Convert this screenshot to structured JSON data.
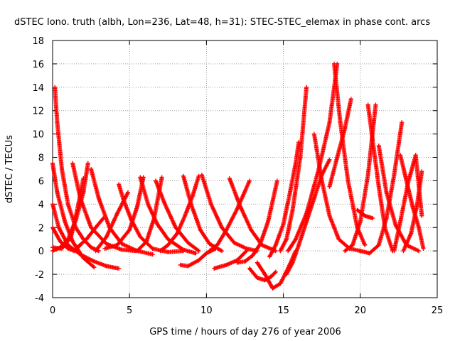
{
  "chart_data": {
    "type": "scatter",
    "title": "dSTEC Iono. truth (albh, Lon=236, Lat=48, h=31): STEC-STEC_elemax in phase cont. arcs",
    "xlabel": "GPS time / hours of day 276 of year 2006",
    "ylabel": "dSTEC  / TECUs",
    "xlim": [
      0,
      25
    ],
    "ylim": [
      -4,
      18
    ],
    "xticks": [
      0,
      5,
      10,
      15,
      20,
      25
    ],
    "yticks": [
      -4,
      -2,
      0,
      2,
      4,
      6,
      8,
      10,
      12,
      14,
      16,
      18
    ],
    "grid": true,
    "marker": "+",
    "color": "#ff0000",
    "series": [
      {
        "x": [
          0.15,
          0.3,
          0.6,
          1.0,
          1.5,
          2.0,
          2.5,
          3.0
        ],
        "y": [
          14.0,
          11.0,
          7.0,
          4.0,
          2.0,
          1.0,
          0.3,
          0.0
        ]
      },
      {
        "x": [
          0.0,
          0.3,
          0.8,
          1.3,
          2.0,
          2.7
        ],
        "y": [
          7.5,
          5.0,
          2.5,
          0.8,
          -0.6,
          -1.4
        ]
      },
      {
        "x": [
          0.0,
          0.4,
          1.0,
          1.8,
          2.7,
          3.5,
          4.3
        ],
        "y": [
          4.0,
          2.0,
          0.5,
          -0.3,
          -0.9,
          -1.3,
          -1.5
        ]
      },
      {
        "x": [
          0.0,
          0.5,
          1.0,
          1.4,
          1.8
        ],
        "y": [
          2.0,
          0.8,
          0.2,
          0.0,
          0.5
        ]
      },
      {
        "x": [
          0.0,
          0.6,
          1.2,
          1.6,
          2.0
        ],
        "y": [
          0.3,
          0.2,
          1.2,
          3.5,
          6.2
        ]
      },
      {
        "x": [
          0.0,
          0.5,
          1.0,
          1.5,
          2.0,
          2.3
        ],
        "y": [
          0.0,
          0.3,
          1.0,
          2.6,
          5.0,
          7.5
        ]
      },
      {
        "x": [
          1.3,
          1.8,
          2.5,
          3.5,
          4.5,
          5.4
        ],
        "y": [
          7.5,
          4.5,
          2.0,
          0.6,
          0.1,
          0.0
        ]
      },
      {
        "x": [
          1.6,
          2.2,
          2.8,
          3.3
        ],
        "y": [
          0.3,
          1.0,
          2.0,
          2.8
        ]
      },
      {
        "x": [
          2.5,
          3.0,
          3.7,
          4.5,
          5.5,
          6.5
        ],
        "y": [
          7.0,
          4.5,
          2.0,
          0.6,
          0.0,
          -0.3
        ]
      },
      {
        "x": [
          2.8,
          3.5,
          4.2,
          4.9
        ],
        "y": [
          0.0,
          1.2,
          3.2,
          5.0
        ]
      },
      {
        "x": [
          4.3,
          4.6,
          5.1,
          5.7,
          6.5,
          7.5,
          8.5
        ],
        "y": [
          5.7,
          4.4,
          2.7,
          1.2,
          0.2,
          -0.1,
          0.0
        ]
      },
      {
        "x": [
          3.4,
          4.2,
          5.0,
          5.5,
          5.9
        ],
        "y": [
          0.2,
          0.5,
          1.8,
          3.8,
          6.3
        ]
      },
      {
        "x": [
          5.7,
          6.2,
          6.8,
          7.5,
          8.5,
          9.3
        ],
        "y": [
          6.3,
          4.0,
          2.3,
          1.0,
          0.1,
          -0.2
        ]
      },
      {
        "x": [
          5.5,
          6.1,
          6.6,
          7.1
        ],
        "y": [
          0.0,
          0.8,
          2.8,
          6.3
        ]
      },
      {
        "x": [
          6.7,
          7.3,
          8.0,
          8.8,
          9.5
        ],
        "y": [
          6.0,
          4.0,
          2.0,
          0.7,
          0.0
        ]
      },
      {
        "x": [
          7.0,
          7.5,
          8.1,
          8.6,
          9.1,
          9.5
        ],
        "y": [
          0.0,
          0.5,
          1.5,
          3.0,
          4.7,
          6.4
        ]
      },
      {
        "x": [
          8.5,
          9.0,
          9.6,
          10.2,
          11.0
        ],
        "y": [
          6.4,
          4.0,
          1.8,
          0.6,
          0.0
        ]
      },
      {
        "x": [
          8.3,
          8.8,
          9.5,
          10.0,
          10.6
        ],
        "y": [
          -1.2,
          -1.3,
          -0.8,
          -0.2,
          0.2
        ]
      },
      {
        "x": [
          9.7,
          10.3,
          11.0,
          11.8,
          12.6,
          13.3
        ],
        "y": [
          6.5,
          4.0,
          2.0,
          0.7,
          0.2,
          0.0
        ]
      },
      {
        "x": [
          10.2,
          10.7,
          11.3,
          12.0,
          12.8
        ],
        "y": [
          0.0,
          0.5,
          1.8,
          3.6,
          6.0
        ]
      },
      {
        "x": [
          11.5,
          12.2,
          12.9,
          13.6,
          14.5
        ],
        "y": [
          6.2,
          3.8,
          1.8,
          0.5,
          0.0
        ]
      },
      {
        "x": [
          10.5,
          11.3,
          12.0,
          12.6
        ],
        "y": [
          -1.5,
          -1.2,
          -0.8,
          0.0
        ]
      },
      {
        "x": [
          12.0,
          12.5,
          13.0,
          13.5,
          14.0,
          14.6
        ],
        "y": [
          -1.0,
          -0.9,
          -0.4,
          0.6,
          2.5,
          6.0
        ]
      },
      {
        "x": [
          12.8,
          13.3,
          13.8,
          14.2,
          14.5
        ],
        "y": [
          -1.5,
          -2.3,
          -2.5,
          -2.2,
          -1.8
        ]
      },
      {
        "x": [
          13.3,
          13.8,
          14.3,
          14.8,
          15.3,
          15.8
        ],
        "y": [
          -1.0,
          -2.0,
          -3.2,
          -2.8,
          -1.5,
          0.0
        ]
      },
      {
        "x": [
          14.1,
          14.5,
          15.0,
          15.4,
          15.8,
          16.0
        ],
        "y": [
          -0.5,
          0.5,
          2.3,
          4.8,
          7.5,
          9.3
        ]
      },
      {
        "x": [
          14.8,
          15.2,
          15.6,
          16.1,
          16.5
        ],
        "y": [
          0.0,
          1.0,
          3.5,
          8.0,
          14.0
        ]
      },
      {
        "x": [
          15.2,
          15.6,
          16.0,
          16.5,
          17.0,
          17.5,
          18.0
        ],
        "y": [
          -2.0,
          -1.0,
          0.5,
          2.5,
          4.5,
          6.5,
          7.8
        ]
      },
      {
        "x": [
          15.3,
          15.8,
          16.5,
          17.3,
          18.0,
          18.5
        ],
        "y": [
          0.0,
          1.0,
          3.2,
          7.0,
          11.0,
          16.0
        ]
      },
      {
        "x": [
          17.0,
          17.5,
          18.0,
          18.6,
          19.3,
          20.0
        ],
        "y": [
          10.0,
          6.0,
          3.0,
          1.0,
          0.2,
          0.0
        ]
      },
      {
        "x": [
          18.3,
          18.7,
          19.2,
          19.8,
          20.3
        ],
        "y": [
          16.0,
          11.0,
          6.0,
          2.0,
          0.5
        ]
      },
      {
        "x": [
          18.0,
          18.5,
          19.0,
          19.4
        ],
        "y": [
          5.5,
          8.0,
          10.5,
          13.0
        ]
      },
      {
        "x": [
          19.0,
          19.5,
          20.0,
          20.5,
          21.0
        ],
        "y": [
          0.0,
          0.5,
          2.5,
          6.5,
          12.5
        ]
      },
      {
        "x": [
          19.8,
          20.3,
          20.8
        ],
        "y": [
          3.5,
          3.0,
          2.8
        ]
      },
      {
        "x": [
          20.5,
          20.8,
          21.2,
          21.6,
          22.1
        ],
        "y": [
          12.5,
          9.5,
          5.5,
          2.0,
          0.0
        ]
      },
      {
        "x": [
          20.0,
          20.6,
          21.2,
          21.7,
          22.2,
          22.7
        ],
        "y": [
          0.0,
          -0.2,
          0.5,
          2.8,
          6.5,
          11.0
        ]
      },
      {
        "x": [
          21.2,
          21.7,
          22.3,
          23.0,
          23.8
        ],
        "y": [
          9.0,
          5.0,
          2.2,
          0.5,
          0.0
        ]
      },
      {
        "x": [
          22.2,
          22.6,
          23.1,
          23.6,
          24.0
        ],
        "y": [
          0.0,
          2.5,
          5.8,
          8.2,
          3.0
        ]
      },
      {
        "x": [
          22.6,
          23.0,
          23.4,
          23.8,
          24.1
        ],
        "y": [
          8.2,
          6.0,
          3.8,
          2.0,
          0.2
        ]
      },
      {
        "x": [
          22.8,
          23.3,
          23.7,
          24.0
        ],
        "y": [
          0.0,
          1.5,
          4.0,
          6.8
        ]
      }
    ]
  }
}
